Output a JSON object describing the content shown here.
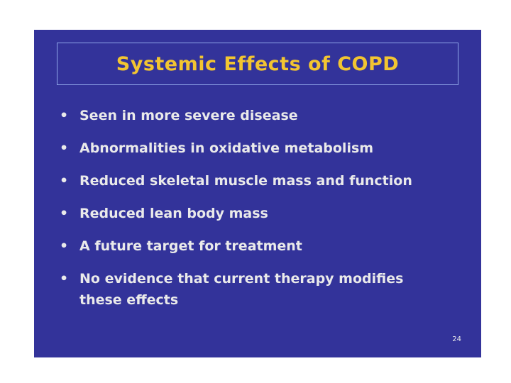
{
  "slide": {
    "title": "Systemic Effects of COPD",
    "bullets": [
      "Seen in more severe disease",
      "Abnormalities in oxidative metabolism",
      "Reduced skeletal muscle mass and function",
      "Reduced lean body mass",
      "A future target for treatment",
      "No evidence that current therapy modifies these effects"
    ],
    "page_number": "24"
  }
}
